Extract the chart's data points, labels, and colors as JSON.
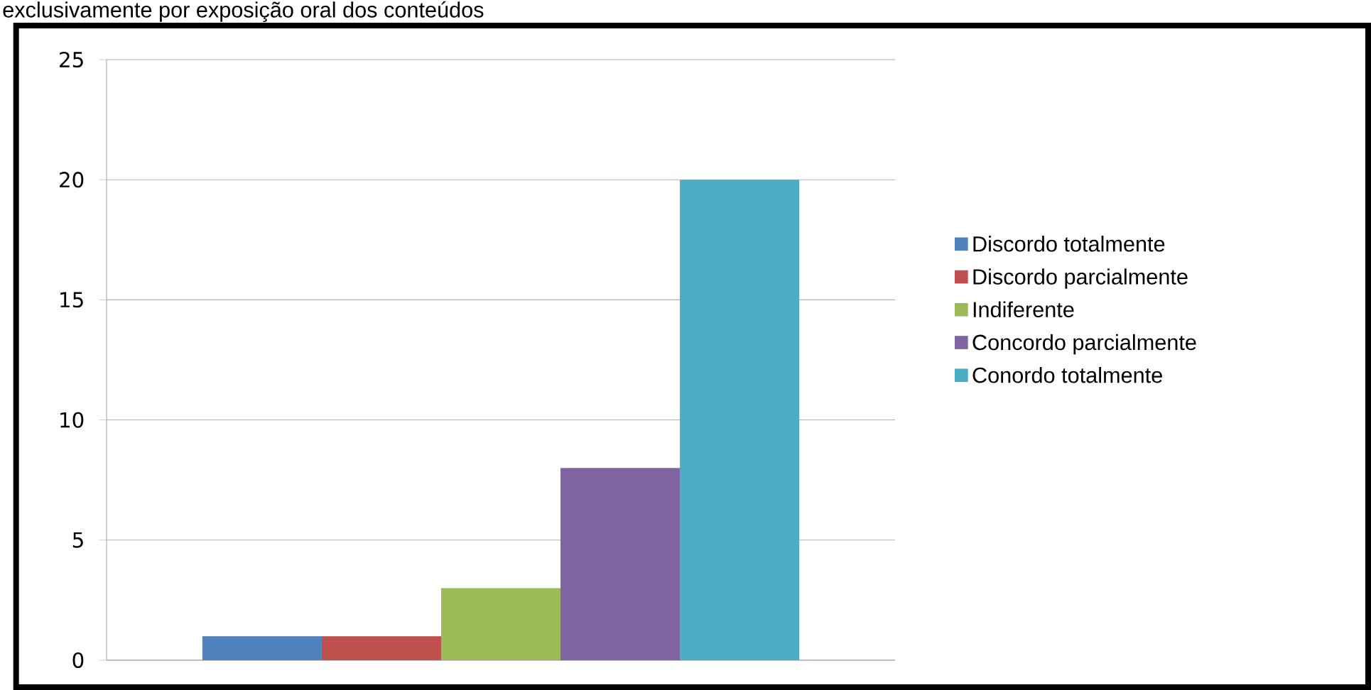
{
  "chart_data": {
    "type": "bar",
    "title": "exclusivamente por exposição oral dos conteúdos",
    "categories": [
      null
    ],
    "series": [
      {
        "name": "Discordo totalmente",
        "color": "#4f81bd",
        "values": [
          1
        ]
      },
      {
        "name": "Discordo parcialmente",
        "color": "#c0504d",
        "values": [
          1
        ]
      },
      {
        "name": "Indiferente",
        "color": "#9bbb59",
        "values": [
          3
        ]
      },
      {
        "name": "Concordo parcialmente",
        "color": "#8064a2",
        "values": [
          8
        ]
      },
      {
        "name": "Conordo totalmente",
        "color": "#4bacc6",
        "values": [
          20
        ]
      }
    ],
    "ylim": [
      0,
      25
    ],
    "yticks": [
      0,
      5,
      10,
      15,
      20,
      25
    ],
    "grid": "y",
    "legend": "right"
  }
}
